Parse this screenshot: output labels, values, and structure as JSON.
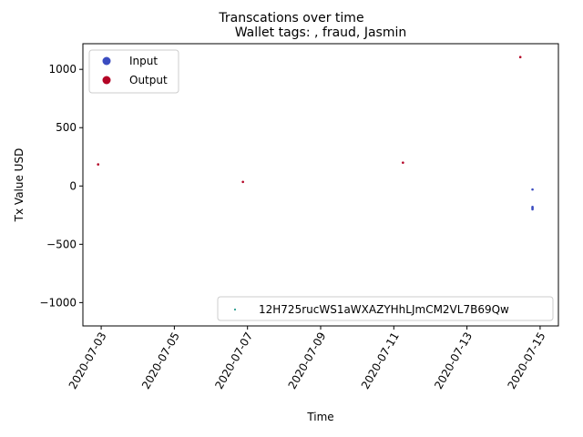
{
  "chart_data": {
    "type": "scatter",
    "suptitle": "Transcations over time",
    "title": "Wallet tags: , fraud, Jasmin",
    "xlabel": "Time",
    "ylabel": "Tx Value USD",
    "xlim": [
      "2020-07-02T12:00",
      "2020-07-15T12:00"
    ],
    "ylim": [
      -1200,
      1220
    ],
    "x_tick_labels": [
      "2020-07-03",
      "2020-07-05",
      "2020-07-07",
      "2020-07-09",
      "2020-07-11",
      "2020-07-13",
      "2020-07-15"
    ],
    "y_ticks": [
      -1000,
      -500,
      0,
      500,
      1000
    ],
    "grid": false,
    "series": [
      {
        "name": "Input",
        "color": "#3b4cc0",
        "points": [
          {
            "x": "2020-07-14T19:00",
            "y": -30
          },
          {
            "x": "2020-07-14T19:00",
            "y": -180
          },
          {
            "x": "2020-07-14T19:00",
            "y": -190
          },
          {
            "x": "2020-07-14T19:00",
            "y": -200
          }
        ]
      },
      {
        "name": "Output",
        "color": "#b40426",
        "points": [
          {
            "x": "2020-07-02T22:00",
            "y": 185
          },
          {
            "x": "2020-07-06T21:00",
            "y": 35
          },
          {
            "x": "2020-07-11T06:00",
            "y": 200
          },
          {
            "x": "2020-07-14T11:00",
            "y": 1105
          }
        ]
      }
    ],
    "legends": [
      {
        "placement": "upper-left",
        "entries": [
          {
            "label": "Input",
            "color": "#3b4cc0"
          },
          {
            "label": "Output",
            "color": "#b40426"
          }
        ]
      },
      {
        "placement": "lower-right",
        "entries": [
          {
            "label": "12H725rucWS1aWXAZYHhLJmCM2VL7B69Qw",
            "color": "#2a9d8f"
          }
        ]
      }
    ]
  }
}
